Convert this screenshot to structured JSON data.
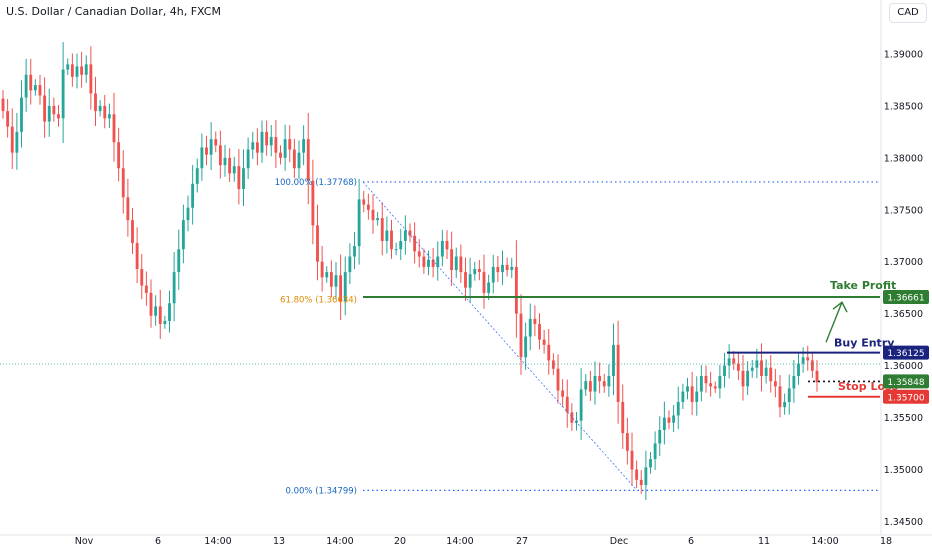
{
  "header": {
    "title": "U.S. Dollar / Canadian Dollar, 4h, FXCM",
    "currency_button": "CAD"
  },
  "colors": {
    "up": "#26a69a",
    "down": "#ef5350",
    "take_profit": "#2e7d32",
    "buy_entry": "#1a237e",
    "stop_loss": "#e53935",
    "fib_line": "#2962ff",
    "fib_label": "#1565c0",
    "fib_618_label": "#e08a00",
    "entry_marker": "#131722"
  },
  "chart_data": {
    "type": "candlestick",
    "symbol": "U.S. Dollar / Canadian Dollar, 4h, FXCM",
    "ylim": [
      1.3435,
      1.3925
    ],
    "grid": false,
    "y_ticks": [
      "1.34500",
      "1.35000",
      "1.35500",
      "1.36000",
      "1.36500",
      "1.37000",
      "1.37500",
      "1.38000",
      "1.38500",
      "1.39000"
    ],
    "x_ticks": [
      "Nov",
      "6",
      "14:00",
      "13",
      "14:00",
      "20",
      "14:00",
      "27",
      "Dec",
      "6",
      "14:00",
      "11",
      "14:00",
      "18"
    ],
    "close_series": [
      1.3845,
      1.383,
      1.3805,
      1.3825,
      1.3858,
      1.388,
      1.3865,
      1.387,
      1.386,
      1.3835,
      1.385,
      1.3842,
      1.3838,
      1.3885,
      1.389,
      1.3878,
      1.3888,
      1.388,
      1.389,
      1.3862,
      1.3845,
      1.385,
      1.3838,
      1.3842,
      1.3815,
      1.379,
      1.3762,
      1.374,
      1.3718,
      1.3693,
      1.3677,
      1.367,
      1.3648,
      1.3657,
      1.364,
      1.3643,
      1.366,
      1.369,
      1.3712,
      1.374,
      1.3752,
      1.3775,
      1.379,
      1.381,
      1.3803,
      1.3818,
      1.3812,
      1.3793,
      1.38,
      1.3785,
      1.3792,
      1.377,
      1.379,
      1.3808,
      1.3815,
      1.3805,
      1.3825,
      1.3812,
      1.382,
      1.3805,
      1.38,
      1.3818,
      1.3808,
      1.379,
      1.3805,
      1.3818,
      1.3778,
      1.3735,
      1.37,
      1.3685,
      1.369,
      1.3676,
      1.3687,
      1.3662,
      1.369,
      1.3705,
      1.3715,
      1.376,
      1.3755,
      1.375,
      1.374,
      1.3742,
      1.372,
      1.373,
      1.3712,
      1.3712,
      1.372,
      1.373,
      1.3725,
      1.371,
      1.3705,
      1.3695,
      1.3702,
      1.3695,
      1.3705,
      1.372,
      1.3712,
      1.3692,
      1.3705,
      1.369,
      1.3675,
      1.3688,
      1.3693,
      1.369,
      1.367,
      1.368,
      1.3695,
      1.369,
      1.3697,
      1.3692,
      1.3695,
      1.365,
      1.3608,
      1.3628,
      1.3645,
      1.364,
      1.3625,
      1.362,
      1.3605,
      1.3597,
      1.3576,
      1.357,
      1.3555,
      1.3545,
      1.3547,
      1.3577,
      1.3585,
      1.3575,
      1.359,
      1.3585,
      1.358,
      1.359,
      1.362,
      1.3565,
      1.3535,
      1.3518,
      1.35,
      1.349,
      1.3485,
      1.3502,
      1.351,
      1.3525,
      1.3538,
      1.355,
      1.3545,
      1.3552,
      1.3565,
      1.3575,
      1.358,
      1.3565,
      1.3575,
      1.359,
      1.3583,
      1.358,
      1.3578,
      1.359,
      1.36,
      1.3607,
      1.3602,
      1.3595,
      1.358,
      1.3595,
      1.3598,
      1.3605,
      1.359,
      1.3598,
      1.3585,
      1.358,
      1.356,
      1.3565,
      1.3578,
      1.359,
      1.3602,
      1.3608,
      1.3605,
      1.3595,
      1.3584
    ],
    "annotations": {
      "fib_100": "100.00% (1.37768)",
      "fib_618": "61.80% (1.36634)",
      "fib_000": "0.00% (1.34799)",
      "take_profit_text": "Take Profit",
      "buy_entry_text": "Buy Entry",
      "stop_loss_text": "Stop Loss"
    },
    "levels": {
      "fib_100": 1.37768,
      "fib_618": 1.36634,
      "fib_000": 1.34799,
      "take_profit": 1.36661,
      "buy_entry": 1.36125,
      "current": 1.35848,
      "stop_loss": 1.357
    },
    "price_tags": {
      "take_profit": "1.36661",
      "buy_entry": "1.36125",
      "current": "1.35848",
      "stop_loss": "1.35700"
    }
  }
}
